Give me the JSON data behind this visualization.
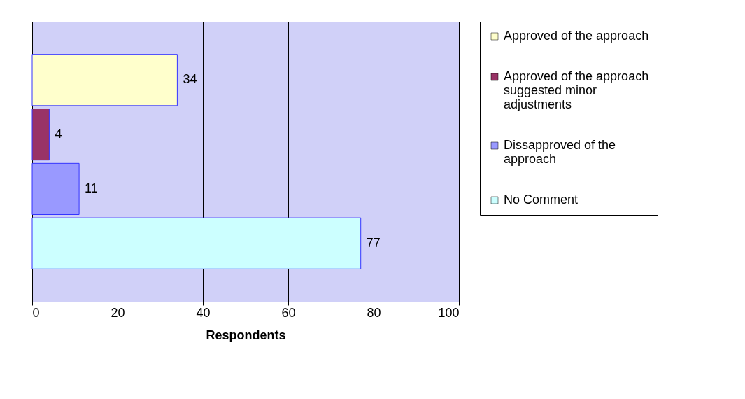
{
  "chart_data": {
    "type": "bar",
    "orientation": "horizontal",
    "categories": [
      null
    ],
    "xlabel": "Respondents",
    "series": [
      {
        "name": "Approved of the approach",
        "color": "#ffffcc",
        "values": [
          34
        ]
      },
      {
        "name": "Approved of the approach suggested minor adjustments",
        "color": "#993366",
        "values": [
          4
        ]
      },
      {
        "name": "Dissapproved of the approach",
        "color": "#9999ff",
        "values": [
          11
        ]
      },
      {
        "name": "No Comment",
        "color": "#ccffff",
        "values": [
          77
        ]
      }
    ],
    "xlim": [
      0,
      100
    ],
    "xticks": [
      0,
      20,
      40,
      60,
      80,
      100
    ],
    "grid": "x",
    "legend": "right",
    "data_labels": true
  }
}
